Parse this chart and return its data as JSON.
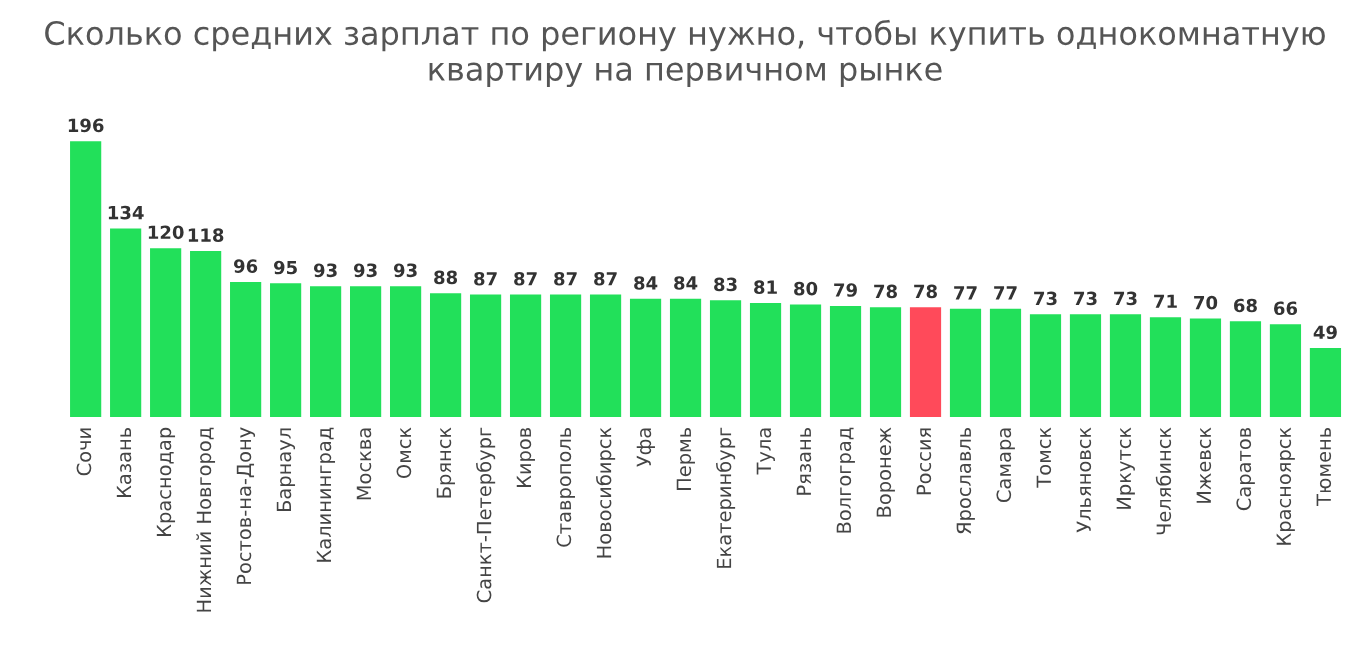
{
  "chart_data": {
    "type": "bar",
    "title": "Сколько средних зарплат по региону нужно, чтобы купить однокомнатную квартиру на первичном рынке",
    "categories": [
      "Сочи",
      "Казань",
      "Краснодар",
      "Нижний Новгород",
      "Ростов-на-Дону",
      "Барнаул",
      "Калининград",
      "Москва",
      "Омск",
      "Брянск",
      "Санкт-Петербург",
      "Киров",
      "Ставрополь",
      "Новосибирск",
      "Уфа",
      "Пермь",
      "Екатеринбург",
      "Тула",
      "Рязань",
      "Волгоград",
      "Воронеж",
      "Россия",
      "Ярославль",
      "Самара",
      "Томск",
      "Ульяновск",
      "Иркутск",
      "Челябинск",
      "Ижевск",
      "Саратов",
      "Красноярск",
      "Тюмень"
    ],
    "values": [
      196,
      134,
      120,
      118,
      96,
      95,
      93,
      93,
      93,
      88,
      87,
      87,
      87,
      87,
      84,
      84,
      83,
      81,
      80,
      79,
      78,
      78,
      77,
      77,
      73,
      73,
      73,
      71,
      70,
      68,
      66,
      49
    ],
    "colors": [
      "#22e05a",
      "#22e05a",
      "#22e05a",
      "#22e05a",
      "#22e05a",
      "#22e05a",
      "#22e05a",
      "#22e05a",
      "#22e05a",
      "#22e05a",
      "#22e05a",
      "#22e05a",
      "#22e05a",
      "#22e05a",
      "#22e05a",
      "#22e05a",
      "#22e05a",
      "#22e05a",
      "#22e05a",
      "#22e05a",
      "#22e05a",
      "#ff4a5a",
      "#22e05a",
      "#22e05a",
      "#22e05a",
      "#22e05a",
      "#22e05a",
      "#22e05a",
      "#22e05a",
      "#22e05a",
      "#22e05a",
      "#22e05a"
    ],
    "data_labels": true,
    "grid": false,
    "legend": false
  }
}
